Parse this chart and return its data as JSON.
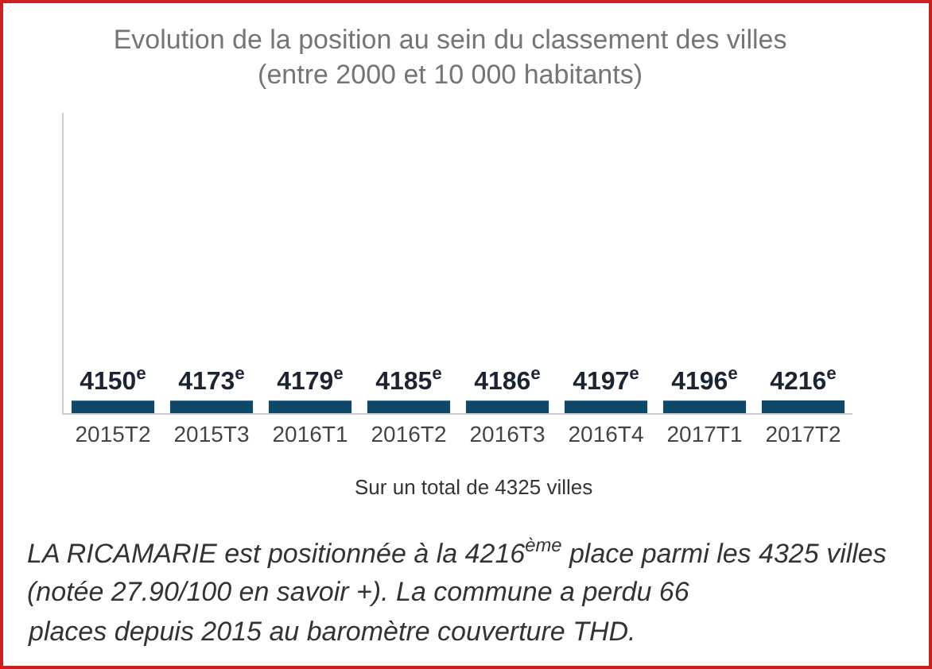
{
  "chart_data": {
    "type": "bar",
    "title": "Evolution de la position au sein du classement des villes\n(entre 2000 et 10 000 habitants)",
    "categories": [
      "2015T2",
      "2015T3",
      "2016T1",
      "2016T2",
      "2016T3",
      "2016T4",
      "2017T1",
      "2017T2"
    ],
    "values": [
      4150,
      4173,
      4179,
      4185,
      4186,
      4197,
      4196,
      4216
    ],
    "value_labels": [
      "4150$^{e}$",
      "4173$^{e}$",
      "4179$^{e}$",
      "4185$^{e}$",
      "4186$^{e}$",
      "4197$^{e}$",
      "4196$^{e}$",
      "4216$^{e}$"
    ],
    "color": "#0d4866",
    "ylim": [
      0,
      100000
    ],
    "tick_labels": "x",
    "annotations": [
      "Sur un total de 4325 villes",
      "LA RICAMARIE est positionnée à la 4216$^{ème}$ place parmi les 4325 villes\n(notée 27.90/100 en savoir +). La commune a perdu 66\nplaces depuis 2015 au baromètre couverture THD."
    ]
  }
}
